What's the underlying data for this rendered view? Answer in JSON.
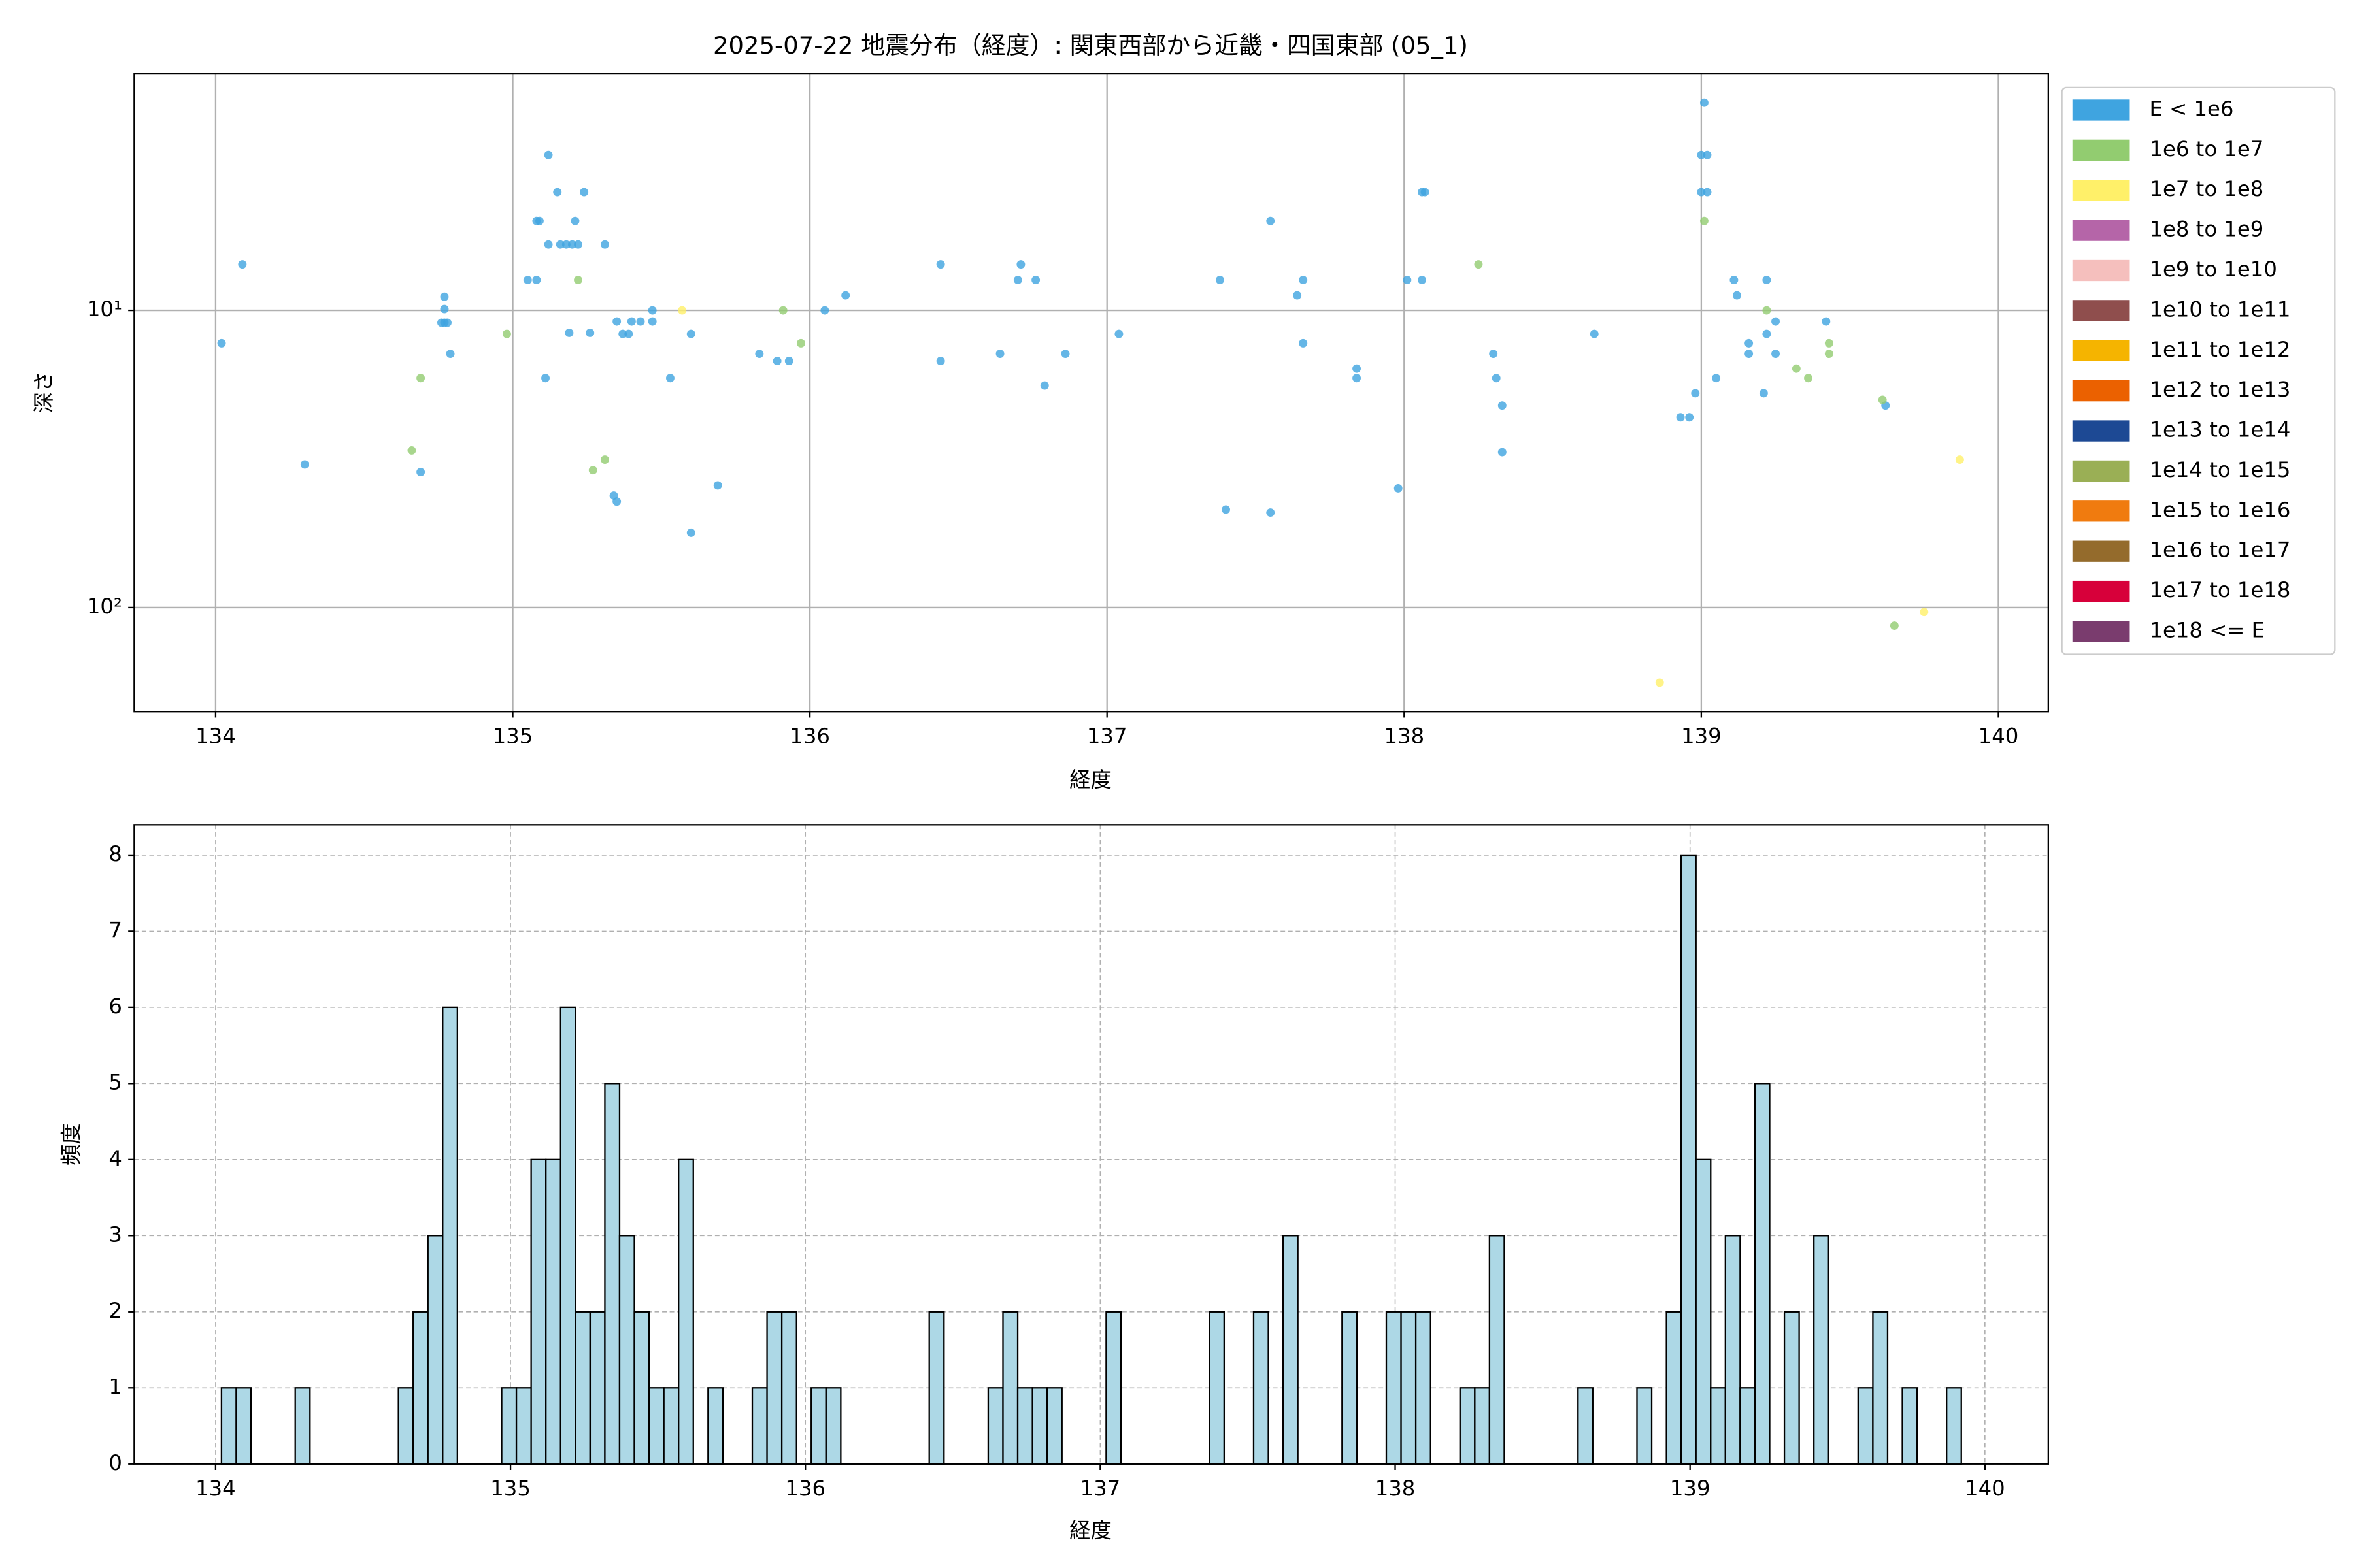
{
  "chart_data": [
    {
      "type": "scatter",
      "title": "2025-07-22 地震分布（経度）: 関東西部から近畿・四国東部 (05_1)",
      "xlabel": "経度",
      "ylabel": "深さ",
      "xlim": [
        133.726,
        140.168
      ],
      "xticks": [
        134,
        135,
        136,
        137,
        138,
        139,
        140
      ],
      "ylim": [
        224,
        1.6
      ],
      "yscale": "log",
      "yticks": [
        {
          "value": 10,
          "label": "10¹"
        },
        {
          "value": 100,
          "label": "10²"
        }
      ],
      "grid": true,
      "legend": "outside upper right",
      "series": [
        {
          "name": "E < 1e6",
          "color": "#3fa4e0",
          "x": [
            134.02,
            134.09,
            134.3,
            134.69,
            134.77,
            134.77,
            134.77,
            134.76,
            134.78,
            134.79,
            135.12,
            135.15,
            135.09,
            135.08,
            135.24,
            135.21,
            135.16,
            135.18,
            135.2,
            135.22,
            135.12,
            135.05,
            135.08,
            135.19,
            135.26,
            135.11,
            135.31,
            135.35,
            135.4,
            135.43,
            135.37,
            135.39,
            135.47,
            135.47,
            135.34,
            135.35,
            135.53,
            135.6,
            135.69,
            135.6,
            135.83,
            135.89,
            135.93,
            136.05,
            136.12,
            136.44,
            136.44,
            136.64,
            136.71,
            136.7,
            136.76,
            136.79,
            136.86,
            137.04,
            137.38,
            137.4,
            137.55,
            137.55,
            137.64,
            137.66,
            137.66,
            137.84,
            137.84,
            137.98,
            138.01,
            138.06,
            138.06,
            138.07,
            138.3,
            138.31,
            138.33,
            138.33,
            138.64,
            138.93,
            138.96,
            138.98,
            139.01,
            139.0,
            139.02,
            139.0,
            139.02,
            139.05,
            139.11,
            139.12,
            139.16,
            139.16,
            139.21,
            139.22,
            139.22,
            139.25,
            139.25,
            139.42,
            139.62
          ],
          "values": [
            12.9,
            7.0,
            33,
            35,
            9.0,
            9.9,
            11,
            11,
            11,
            14,
            3.0,
            4.0,
            5.0,
            5.0,
            4.0,
            5.0,
            6.0,
            6.0,
            6.0,
            6.0,
            6.0,
            7.9,
            7.9,
            11.9,
            11.9,
            16.9,
            6.0,
            10.9,
            10.9,
            10.9,
            12,
            12,
            10.9,
            10,
            42,
            44,
            16.9,
            12,
            38.8,
            56,
            14,
            14.8,
            14.8,
            10,
            8.9,
            7.0,
            14.8,
            14,
            7.0,
            7.9,
            7.9,
            17.9,
            14,
            12,
            7.9,
            46.8,
            47.9,
            5.0,
            8.9,
            7.9,
            12.9,
            15.7,
            16.9,
            39.7,
            7.9,
            7.9,
            4.0,
            4.0,
            14,
            16.9,
            20.9,
            30,
            12,
            22.9,
            22.9,
            19,
            2.0,
            3.0,
            3.0,
            4.0,
            4.0,
            16.9,
            7.9,
            8.9,
            12.9,
            14,
            19,
            7.9,
            12,
            14,
            10.9,
            10.9,
            20.9
          ]
        },
        {
          "name": "1e6 to 1e7",
          "color": "#92cc70",
          "x": [
            134.69,
            134.66,
            134.98,
            135.22,
            135.27,
            135.31,
            135.91,
            135.97,
            138.25,
            139.01,
            139.22,
            139.32,
            139.36,
            139.43,
            139.43,
            139.61,
            139.65
          ],
          "values": [
            16.9,
            29.6,
            12,
            7.9,
            34.5,
            31.8,
            10,
            12.9,
            7.0,
            5.0,
            10,
            15.7,
            16.9,
            12.9,
            14,
            20,
            115
          ]
        },
        {
          "name": "1e7 to 1e8",
          "color": "#fff069",
          "x": [
            135.57,
            138.86,
            139.75,
            139.87
          ],
          "values": [
            10,
            179,
            103.5,
            31.8
          ]
        },
        {
          "name": "1e8 to 1e9",
          "color": "#b565a8",
          "x": [],
          "values": []
        },
        {
          "name": "1e9 to 1e10",
          "color": "#f5bfbd",
          "x": [],
          "values": []
        },
        {
          "name": "1e10 to 1e11",
          "color": "#8f4e4d",
          "x": [],
          "values": []
        },
        {
          "name": "1e11 to 1e12",
          "color": "#f5b400",
          "x": [],
          "values": []
        },
        {
          "name": "1e12 to 1e13",
          "color": "#eb6100",
          "x": [],
          "values": []
        },
        {
          "name": "1e13 to 1e14",
          "color": "#1d4994",
          "x": [],
          "values": []
        },
        {
          "name": "1e14 to 1e15",
          "color": "#9aaf55",
          "x": [],
          "values": []
        },
        {
          "name": "1e15 to 1e16",
          "color": "#f07b0f",
          "x": [],
          "values": []
        },
        {
          "name": "1e16 to 1e17",
          "color": "#946b2c",
          "x": [],
          "values": []
        },
        {
          "name": "1e17 to 1e18",
          "color": "#d7003a",
          "x": [],
          "values": []
        },
        {
          "name": "1e18 <= E",
          "color": "#7a3c6e",
          "x": [],
          "values": []
        }
      ]
    },
    {
      "type": "histogram",
      "xlabel": "経度",
      "ylabel": "頻度",
      "color": "#add8e6",
      "edgecolor": "#000000",
      "xlim": [
        133.724,
        140.215
      ],
      "xticks": [
        134,
        135,
        136,
        137,
        138,
        139,
        140
      ],
      "ylim": [
        0,
        8.4
      ],
      "yticks": [
        0,
        1,
        2,
        3,
        4,
        5,
        6,
        7,
        8
      ],
      "grid": "dashed",
      "bins": [
        134.02,
        134.07,
        134.12,
        134.17,
        134.22,
        134.27,
        134.32,
        134.37,
        134.42,
        134.47,
        134.52,
        134.57,
        134.62,
        134.67,
        134.72,
        134.77,
        134.82,
        134.87,
        134.92,
        134.97,
        135.02,
        135.07,
        135.12,
        135.17,
        135.22,
        135.27,
        135.32,
        135.37,
        135.42,
        135.47,
        135.52,
        135.57,
        135.62,
        135.67,
        135.72,
        135.77,
        135.82,
        135.87,
        135.92,
        135.97,
        136.02,
        136.07,
        136.12,
        136.17,
        136.22,
        136.27,
        136.32,
        136.37,
        136.42,
        136.47,
        136.52,
        136.57,
        136.62,
        136.67,
        136.72,
        136.77,
        136.82,
        136.87,
        136.92,
        136.97,
        137.02,
        137.07,
        137.12,
        137.17,
        137.22,
        137.27,
        137.32,
        137.37,
        137.42,
        137.47,
        137.52,
        137.57,
        137.62,
        137.67,
        137.72,
        137.77,
        137.82,
        137.87,
        137.92,
        137.97,
        138.02,
        138.07,
        138.12,
        138.17,
        138.22,
        138.27,
        138.32,
        138.37,
        138.42,
        138.47,
        138.52,
        138.57,
        138.62,
        138.67,
        138.72,
        138.77,
        138.82,
        138.87,
        138.92,
        138.97,
        139.02,
        139.07,
        139.12,
        139.17,
        139.22,
        139.27,
        139.32,
        139.37,
        139.42,
        139.47,
        139.52,
        139.57,
        139.62,
        139.67,
        139.72,
        139.77,
        139.82,
        139.87,
        139.92
      ],
      "values": [
        1,
        1,
        0,
        0,
        0,
        1,
        0,
        0,
        0,
        0,
        0,
        0,
        1,
        2,
        3,
        6,
        0,
        0,
        0,
        1,
        1,
        4,
        4,
        6,
        2,
        2,
        5,
        3,
        2,
        1,
        1,
        4,
        0,
        1,
        0,
        0,
        1,
        2,
        2,
        0,
        1,
        1,
        0,
        0,
        0,
        0,
        0,
        0,
        2,
        0,
        0,
        0,
        1,
        2,
        1,
        1,
        1,
        0,
        0,
        0,
        2,
        0,
        0,
        0,
        0,
        0,
        0,
        2,
        0,
        0,
        2,
        0,
        3,
        0,
        0,
        0,
        2,
        0,
        0,
        2,
        2,
        2,
        0,
        0,
        1,
        1,
        3,
        0,
        0,
        0,
        0,
        0,
        1,
        0,
        0,
        0,
        1,
        0,
        2,
        8,
        4,
        1,
        3,
        1,
        5,
        0,
        2,
        0,
        3,
        0,
        0,
        1,
        2,
        0,
        1,
        0,
        0,
        1
      ]
    }
  ]
}
